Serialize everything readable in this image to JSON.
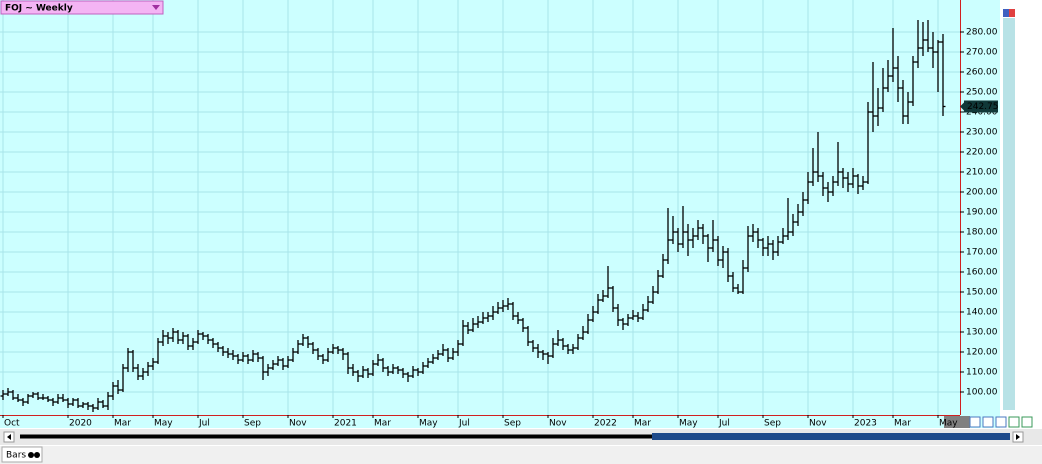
{
  "chart_data": {
    "type": "ohlc",
    "title": "FOJ ~ Weekly",
    "tab": "Bars",
    "ohlc": [
      [
        98,
        101,
        96,
        99
      ],
      [
        99,
        102,
        98,
        100
      ],
      [
        100,
        101,
        96,
        97
      ],
      [
        97,
        99,
        95,
        96
      ],
      [
        96,
        97,
        93,
        95
      ],
      [
        95,
        99,
        94,
        98
      ],
      [
        98,
        100,
        97,
        99
      ],
      [
        99,
        100,
        96,
        97
      ],
      [
        97,
        99,
        96,
        97
      ],
      [
        97,
        98,
        95,
        96
      ],
      [
        96,
        97,
        93,
        95
      ],
      [
        95,
        99,
        94,
        97
      ],
      [
        97,
        99,
        95,
        96
      ],
      [
        96,
        97,
        92,
        94
      ],
      [
        94,
        97,
        93,
        96
      ],
      [
        96,
        97,
        92,
        93
      ],
      [
        93,
        95,
        92,
        94
      ],
      [
        94,
        95,
        91,
        93
      ],
      [
        93,
        94,
        90,
        92
      ],
      [
        92,
        97,
        91,
        95
      ],
      [
        95,
        96,
        92,
        93
      ],
      [
        93,
        100,
        91,
        98
      ],
      [
        98,
        105,
        96,
        103
      ],
      [
        103,
        106,
        99,
        101
      ],
      [
        101,
        114,
        100,
        112
      ],
      [
        112,
        122,
        110,
        120
      ],
      [
        120,
        121,
        110,
        112
      ],
      [
        112,
        114,
        106,
        108
      ],
      [
        108,
        112,
        106,
        110
      ],
      [
        110,
        115,
        108,
        113
      ],
      [
        113,
        117,
        111,
        115
      ],
      [
        115,
        127,
        114,
        125
      ],
      [
        125,
        131,
        123,
        128
      ],
      [
        128,
        130,
        124,
        127
      ],
      [
        127,
        132,
        125,
        130
      ],
      [
        130,
        131,
        124,
        126
      ],
      [
        126,
        130,
        124,
        128
      ],
      [
        128,
        129,
        121,
        123
      ],
      [
        123,
        127,
        121,
        125
      ],
      [
        125,
        131,
        124,
        129
      ],
      [
        129,
        130,
        126,
        128
      ],
      [
        128,
        129,
        124,
        126
      ],
      [
        126,
        127,
        122,
        124
      ],
      [
        124,
        125,
        120,
        122
      ],
      [
        122,
        123,
        118,
        120
      ],
      [
        120,
        122,
        117,
        119
      ],
      [
        119,
        121,
        116,
        118
      ],
      [
        118,
        119,
        114,
        116
      ],
      [
        116,
        120,
        115,
        118
      ],
      [
        118,
        119,
        114,
        116
      ],
      [
        116,
        121,
        115,
        119
      ],
      [
        119,
        120,
        115,
        117
      ],
      [
        117,
        118,
        106,
        110
      ],
      [
        110,
        114,
        108,
        112
      ],
      [
        112,
        116,
        111,
        114
      ],
      [
        114,
        118,
        113,
        116
      ],
      [
        116,
        117,
        111,
        113
      ],
      [
        113,
        118,
        112,
        116
      ],
      [
        116,
        122,
        115,
        120
      ],
      [
        120,
        126,
        119,
        124
      ],
      [
        124,
        129,
        123,
        127
      ],
      [
        127,
        128,
        122,
        124
      ],
      [
        124,
        125,
        119,
        121
      ],
      [
        121,
        122,
        116,
        118
      ],
      [
        118,
        119,
        114,
        116
      ],
      [
        116,
        122,
        115,
        120
      ],
      [
        120,
        124,
        119,
        122
      ],
      [
        122,
        123,
        119,
        121
      ],
      [
        121,
        122,
        116,
        119
      ],
      [
        119,
        120,
        109,
        112
      ],
      [
        112,
        114,
        108,
        110
      ],
      [
        110,
        111,
        105,
        108
      ],
      [
        108,
        113,
        107,
        111
      ],
      [
        111,
        112,
        107,
        109
      ],
      [
        109,
        116,
        108,
        114
      ],
      [
        114,
        119,
        113,
        116
      ],
      [
        116,
        117,
        110,
        112
      ],
      [
        112,
        113,
        108,
        110
      ],
      [
        110,
        114,
        109,
        112
      ],
      [
        112,
        113,
        109,
        111
      ],
      [
        111,
        112,
        107,
        109
      ],
      [
        109,
        110,
        105,
        108
      ],
      [
        108,
        113,
        107,
        111
      ],
      [
        111,
        112,
        108,
        110
      ],
      [
        110,
        115,
        109,
        113
      ],
      [
        113,
        117,
        112,
        115
      ],
      [
        115,
        119,
        114,
        117
      ],
      [
        117,
        121,
        116,
        119
      ],
      [
        119,
        124,
        118,
        121
      ],
      [
        121,
        122,
        115,
        117
      ],
      [
        117,
        122,
        116,
        120
      ],
      [
        120,
        126,
        118,
        124
      ],
      [
        124,
        136,
        123,
        133
      ],
      [
        133,
        135,
        129,
        131
      ],
      [
        131,
        137,
        130,
        134
      ],
      [
        134,
        138,
        132,
        135
      ],
      [
        135,
        140,
        134,
        137
      ],
      [
        137,
        140,
        135,
        138
      ],
      [
        138,
        143,
        136,
        140
      ],
      [
        140,
        145,
        139,
        142
      ],
      [
        142,
        146,
        140,
        143
      ],
      [
        143,
        147,
        141,
        144
      ],
      [
        144,
        145,
        136,
        138
      ],
      [
        138,
        140,
        134,
        136
      ],
      [
        136,
        137,
        130,
        132
      ],
      [
        132,
        133,
        123,
        125
      ],
      [
        125,
        126,
        120,
        122
      ],
      [
        122,
        124,
        117,
        120
      ],
      [
        120,
        121,
        116,
        119
      ],
      [
        119,
        120,
        114,
        118
      ],
      [
        118,
        127,
        117,
        124
      ],
      [
        124,
        131,
        123,
        126
      ],
      [
        126,
        127,
        121,
        123
      ],
      [
        123,
        124,
        119,
        121
      ],
      [
        121,
        124,
        119,
        122
      ],
      [
        122,
        129,
        121,
        127
      ],
      [
        127,
        133,
        126,
        130
      ],
      [
        130,
        139,
        129,
        136
      ],
      [
        136,
        143,
        135,
        140
      ],
      [
        140,
        149,
        139,
        146
      ],
      [
        146,
        151,
        145,
        148
      ],
      [
        148,
        163,
        147,
        152
      ],
      [
        152,
        153,
        140,
        142
      ],
      [
        142,
        144,
        133,
        136
      ],
      [
        136,
        137,
        131,
        134
      ],
      [
        134,
        139,
        133,
        137
      ],
      [
        137,
        141,
        136,
        138
      ],
      [
        138,
        140,
        135,
        137
      ],
      [
        137,
        144,
        136,
        141
      ],
      [
        141,
        148,
        140,
        145
      ],
      [
        145,
        153,
        144,
        150
      ],
      [
        150,
        161,
        149,
        158
      ],
      [
        158,
        169,
        157,
        166
      ],
      [
        166,
        192,
        164,
        176
      ],
      [
        176,
        188,
        174,
        180
      ],
      [
        180,
        182,
        170,
        174
      ],
      [
        174,
        193,
        172,
        180
      ],
      [
        180,
        184,
        168,
        176
      ],
      [
        176,
        182,
        172,
        178
      ],
      [
        178,
        186,
        176,
        182
      ],
      [
        182,
        184,
        174,
        178
      ],
      [
        178,
        179,
        165,
        172
      ],
      [
        172,
        186,
        170,
        176
      ],
      [
        176,
        178,
        163,
        166
      ],
      [
        166,
        173,
        162,
        170
      ],
      [
        170,
        172,
        155,
        158
      ],
      [
        158,
        160,
        150,
        152
      ],
      [
        152,
        154,
        149,
        150
      ],
      [
        150,
        166,
        149,
        162
      ],
      [
        162,
        183,
        160,
        178
      ],
      [
        178,
        184,
        175,
        180
      ],
      [
        180,
        182,
        172,
        176
      ],
      [
        176,
        177,
        168,
        172
      ],
      [
        172,
        178,
        168,
        174
      ],
      [
        174,
        176,
        166,
        170
      ],
      [
        170,
        178,
        168,
        175
      ],
      [
        175,
        182,
        174,
        178
      ],
      [
        178,
        197,
        176,
        180
      ],
      [
        180,
        189,
        178,
        185
      ],
      [
        185,
        194,
        183,
        190
      ],
      [
        190,
        200,
        188,
        196
      ],
      [
        196,
        210,
        194,
        205
      ],
      [
        205,
        222,
        203,
        210
      ],
      [
        210,
        230,
        205,
        208
      ],
      [
        208,
        210,
        198,
        202
      ],
      [
        202,
        205,
        195,
        200
      ],
      [
        200,
        208,
        198,
        205
      ],
      [
        205,
        225,
        203,
        210
      ],
      [
        210,
        212,
        202,
        207
      ],
      [
        207,
        210,
        200,
        204
      ],
      [
        204,
        212,
        202,
        208
      ],
      [
        208,
        209,
        199,
        203
      ],
      [
        203,
        208,
        201,
        205
      ],
      [
        205,
        245,
        204,
        240
      ],
      [
        240,
        265,
        230,
        238
      ],
      [
        238,
        252,
        233,
        242
      ],
      [
        242,
        262,
        240,
        252
      ],
      [
        252,
        266,
        250,
        258
      ],
      [
        258,
        282,
        255,
        262
      ],
      [
        262,
        268,
        245,
        252
      ],
      [
        252,
        256,
        234,
        238
      ],
      [
        238,
        250,
        234,
        245
      ],
      [
        245,
        268,
        243,
        265
      ],
      [
        265,
        286,
        262,
        272
      ],
      [
        272,
        285,
        268,
        276
      ],
      [
        276,
        286,
        270,
        272
      ],
      [
        272,
        280,
        262,
        270
      ],
      [
        270,
        276,
        250,
        275
      ],
      [
        275,
        279,
        238,
        242.75
      ]
    ],
    "color": "#000000",
    "xlim": [
      -0.6,
      191.4
    ],
    "xticks": [
      {
        "value": 0,
        "label": "Oct"
      },
      {
        "value": 13,
        "label": "2020"
      },
      {
        "value": 22,
        "label": "Mar"
      },
      {
        "value": 30,
        "label": "May"
      },
      {
        "value": 39,
        "label": "Jul"
      },
      {
        "value": 48,
        "label": "Sep"
      },
      {
        "value": 57,
        "label": "Nov"
      },
      {
        "value": 66,
        "label": "2021"
      },
      {
        "value": 74,
        "label": "Mar"
      },
      {
        "value": 83,
        "label": "May"
      },
      {
        "value": 91,
        "label": "Jul"
      },
      {
        "value": 100,
        "label": "Sep"
      },
      {
        "value": 109,
        "label": "Nov"
      },
      {
        "value": 118,
        "label": "2022"
      },
      {
        "value": 126,
        "label": "Mar"
      },
      {
        "value": 135,
        "label": "May"
      },
      {
        "value": 143,
        "label": "Jul"
      },
      {
        "value": 152,
        "label": "Sep"
      },
      {
        "value": 161,
        "label": "Nov"
      },
      {
        "value": 170,
        "label": "2023"
      },
      {
        "value": 178,
        "label": "Mar"
      },
      {
        "value": 187,
        "label": "May"
      }
    ],
    "ylim": [
      88.5,
      296
    ],
    "yticks": [
      {
        "value": 100,
        "label": "100.00"
      },
      {
        "value": 110,
        "label": "110.00"
      },
      {
        "value": 120,
        "label": "120.00"
      },
      {
        "value": 130,
        "label": "130.00"
      },
      {
        "value": 140,
        "label": "140.00"
      },
      {
        "value": 150,
        "label": "150.00"
      },
      {
        "value": 160,
        "label": "160.00"
      },
      {
        "value": 170,
        "label": "170.00"
      },
      {
        "value": 180,
        "label": "180.00"
      },
      {
        "value": 190,
        "label": "190.00"
      },
      {
        "value": 200,
        "label": "200.00"
      },
      {
        "value": 210,
        "label": "210.00"
      },
      {
        "value": 220,
        "label": "220.00"
      },
      {
        "value": 230,
        "label": "230.00"
      },
      {
        "value": 240,
        "label": "240.00"
      },
      {
        "value": 250,
        "label": "250.00"
      },
      {
        "value": 260,
        "label": "260.00"
      },
      {
        "value": 270,
        "label": "270.00"
      },
      {
        "value": 280,
        "label": "280.00"
      }
    ],
    "grid": true
  }
}
